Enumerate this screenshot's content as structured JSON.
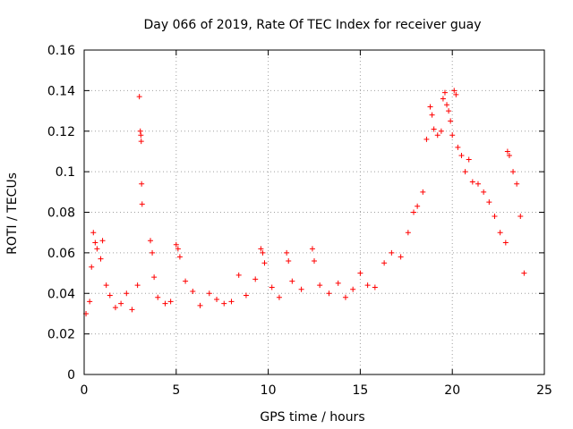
{
  "chart_data": {
    "type": "scatter",
    "title": "Day 066 of 2019, Rate Of TEC Index for receiver guay",
    "xlabel": "GPS time / hours",
    "ylabel": "ROTI / TECUs",
    "xlim": [
      0,
      25
    ],
    "ylim": [
      0,
      0.16
    ],
    "xticks": [
      0,
      5,
      10,
      15,
      20,
      25
    ],
    "yticks": [
      0,
      0.02,
      0.04,
      0.06,
      0.08,
      0.1,
      0.12,
      0.14,
      0.16
    ],
    "xtick_labels": [
      "0",
      "5",
      "10",
      "15",
      "20",
      "25"
    ],
    "ytick_labels": [
      "0",
      "0.02",
      "0.04",
      "0.06",
      "0.08",
      "0.1",
      "0.12",
      "0.14",
      "0.16"
    ],
    "grid": true,
    "marker": "+",
    "color": "#ff0000",
    "series": [
      {
        "name": "ROTI",
        "points": [
          [
            0.1,
            0.03
          ],
          [
            0.3,
            0.036
          ],
          [
            0.4,
            0.053
          ],
          [
            0.5,
            0.07
          ],
          [
            0.6,
            0.065
          ],
          [
            0.7,
            0.062
          ],
          [
            0.9,
            0.057
          ],
          [
            1.0,
            0.066
          ],
          [
            1.2,
            0.044
          ],
          [
            1.4,
            0.039
          ],
          [
            1.7,
            0.033
          ],
          [
            2.0,
            0.035
          ],
          [
            2.3,
            0.04
          ],
          [
            2.6,
            0.032
          ],
          [
            2.9,
            0.044
          ],
          [
            3.0,
            0.137
          ],
          [
            3.05,
            0.12
          ],
          [
            3.08,
            0.118
          ],
          [
            3.1,
            0.115
          ],
          [
            3.12,
            0.094
          ],
          [
            3.15,
            0.084
          ],
          [
            3.6,
            0.066
          ],
          [
            3.7,
            0.06
          ],
          [
            3.8,
            0.048
          ],
          [
            4.0,
            0.038
          ],
          [
            4.4,
            0.035
          ],
          [
            4.7,
            0.036
          ],
          [
            5.0,
            0.064
          ],
          [
            5.1,
            0.062
          ],
          [
            5.2,
            0.058
          ],
          [
            5.5,
            0.046
          ],
          [
            5.9,
            0.041
          ],
          [
            6.3,
            0.034
          ],
          [
            6.8,
            0.04
          ],
          [
            7.2,
            0.037
          ],
          [
            7.6,
            0.035
          ],
          [
            8.0,
            0.036
          ],
          [
            8.4,
            0.049
          ],
          [
            8.8,
            0.039
          ],
          [
            9.3,
            0.047
          ],
          [
            9.6,
            0.062
          ],
          [
            9.7,
            0.06
          ],
          [
            9.8,
            0.055
          ],
          [
            10.2,
            0.043
          ],
          [
            10.6,
            0.038
          ],
          [
            11.0,
            0.06
          ],
          [
            11.1,
            0.056
          ],
          [
            11.3,
            0.046
          ],
          [
            11.8,
            0.042
          ],
          [
            12.4,
            0.062
          ],
          [
            12.5,
            0.056
          ],
          [
            12.8,
            0.044
          ],
          [
            13.3,
            0.04
          ],
          [
            13.8,
            0.045
          ],
          [
            14.2,
            0.038
          ],
          [
            14.6,
            0.042
          ],
          [
            15.0,
            0.05
          ],
          [
            15.4,
            0.044
          ],
          [
            15.8,
            0.043
          ],
          [
            16.3,
            0.055
          ],
          [
            16.7,
            0.06
          ],
          [
            17.2,
            0.058
          ],
          [
            17.6,
            0.07
          ],
          [
            17.9,
            0.08
          ],
          [
            18.1,
            0.083
          ],
          [
            18.4,
            0.09
          ],
          [
            18.6,
            0.116
          ],
          [
            18.8,
            0.132
          ],
          [
            18.9,
            0.128
          ],
          [
            19.0,
            0.121
          ],
          [
            19.2,
            0.118
          ],
          [
            19.4,
            0.12
          ],
          [
            19.5,
            0.136
          ],
          [
            19.6,
            0.139
          ],
          [
            19.7,
            0.133
          ],
          [
            19.8,
            0.13
          ],
          [
            19.9,
            0.125
          ],
          [
            20.0,
            0.118
          ],
          [
            20.1,
            0.14
          ],
          [
            20.2,
            0.138
          ],
          [
            20.3,
            0.112
          ],
          [
            20.5,
            0.108
          ],
          [
            20.7,
            0.1
          ],
          [
            20.9,
            0.106
          ],
          [
            21.1,
            0.095
          ],
          [
            21.4,
            0.094
          ],
          [
            21.7,
            0.09
          ],
          [
            22.0,
            0.085
          ],
          [
            22.3,
            0.078
          ],
          [
            22.6,
            0.07
          ],
          [
            22.9,
            0.065
          ],
          [
            23.0,
            0.11
          ],
          [
            23.1,
            0.108
          ],
          [
            23.3,
            0.1
          ],
          [
            23.5,
            0.094
          ],
          [
            23.7,
            0.078
          ],
          [
            23.9,
            0.05
          ]
        ]
      }
    ]
  }
}
